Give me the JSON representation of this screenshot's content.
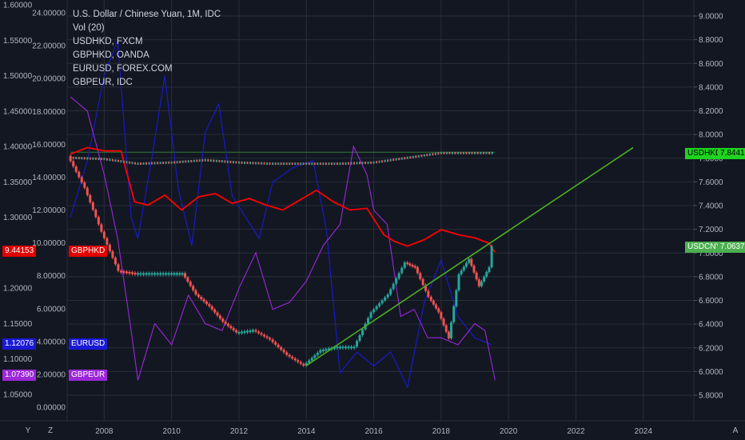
{
  "legend": {
    "main": "U.S. Dollar / Chinese Yuan, 1M, IDC",
    "vol": "Vol (20)",
    "s1": "USDHKD, FXCM",
    "s2": "GBPHKD, OANDA",
    "s3": "EURUSD, FOREX.COM",
    "s4": "GBPEUR, IDC"
  },
  "badges": {
    "usdhkd_name": "USDHKD",
    "usdhkd_val": "7.8441",
    "usdcny_name": "USDCNY",
    "usdcny_val": "7.0637",
    "gbphkd_val": "9.44153",
    "gbphkd_name": "GBPHKD",
    "eurusd_val": "1.12076",
    "eurusd_name": "EURUSD",
    "gbpeur_val": "1.07390",
    "gbpeur_name": "GBPEUR"
  },
  "corner": {
    "left": "Y",
    "z": "Z",
    "auto": "A"
  },
  "colors": {
    "background": "#131722",
    "grid": "#2a2e39",
    "axis_text": "#b2b5be",
    "usdcny_up": "#26a69a",
    "usdcny_down": "#ef5350",
    "usdhkd": "#ffffff",
    "gbphkd": "#ff0000",
    "eurusd": "#1a1ad6",
    "gbpeur": "#9c27d9",
    "trendline": "#4caf20",
    "hline": "#2e7d32"
  },
  "chart_data": {
    "type": "line",
    "x_ticks": [
      "2008",
      "2010",
      "2012",
      "2014",
      "2016",
      "2018",
      "2020",
      "2022",
      "2024"
    ],
    "x_range": [
      2006.9,
      2025.5
    ],
    "left_axis_outer": {
      "ticks": [
        "1.60000",
        "1.55000",
        "1.50000",
        "1.45000",
        "1.40000",
        "1.35000",
        "1.30000",
        "1.25000",
        "1.20000",
        "1.15000",
        "1.10000",
        "1.05000"
      ],
      "range": [
        1.05,
        1.6
      ]
    },
    "left_axis_inner": {
      "ticks": [
        "24.00000",
        "22.00000",
        "20.00000",
        "18.00000",
        "16.00000",
        "14.00000",
        "12.00000",
        "10.00000",
        "8.00000",
        "6.00000",
        "4.00000",
        "2.00000",
        "0.00000"
      ],
      "range": [
        0,
        24
      ]
    },
    "right_axis": {
      "ticks": [
        "9.0000",
        "8.8000",
        "8.6000",
        "8.4000",
        "8.2000",
        "8.0000",
        "7.8000",
        "7.6000",
        "7.4000",
        "7.2000",
        "7.0000",
        "6.8000",
        "6.6000",
        "6.4000",
        "6.2000",
        "6.0000",
        "5.8000"
      ],
      "range": [
        5.8,
        9.0
      ]
    },
    "series": [
      {
        "name": "USDCNY",
        "axis": "right",
        "x": [
          2007.0,
          2007.5,
          2008.0,
          2008.5,
          2009.0,
          2009.5,
          2010.0,
          2010.4,
          2010.8,
          2011.2,
          2011.6,
          2012.0,
          2012.5,
          2013.0,
          2013.5,
          2014.0,
          2014.5,
          2015.0,
          2015.5,
          2016.0,
          2016.5,
          2017.0,
          2017.3,
          2017.7,
          2018.0,
          2018.3,
          2018.6,
          2018.9,
          2019.2,
          2019.5,
          2019.6
        ],
        "y": [
          7.82,
          7.55,
          7.18,
          6.85,
          6.83,
          6.83,
          6.83,
          6.83,
          6.65,
          6.55,
          6.42,
          6.33,
          6.35,
          6.27,
          6.14,
          6.05,
          6.18,
          6.21,
          6.21,
          6.5,
          6.65,
          6.92,
          6.88,
          6.63,
          6.5,
          6.28,
          6.82,
          6.95,
          6.72,
          6.88,
          7.06
        ]
      },
      {
        "name": "USDHKD",
        "axis": "right",
        "x": [
          2007.0,
          2008.0,
          2009.0,
          2010.0,
          2011.0,
          2012.0,
          2013.0,
          2014.0,
          2015.0,
          2016.0,
          2017.0,
          2018.0,
          2019.0,
          2019.6
        ],
        "y": [
          7.8,
          7.79,
          7.75,
          7.76,
          7.78,
          7.76,
          7.75,
          7.75,
          7.75,
          7.76,
          7.8,
          7.84,
          7.84,
          7.84
        ]
      },
      {
        "name": "GBPHKD",
        "axis": "inner",
        "x": [
          2007.0,
          2007.5,
          2008.0,
          2008.5,
          2008.9,
          2009.3,
          2009.8,
          2010.3,
          2010.8,
          2011.3,
          2011.8,
          2012.3,
          2012.8,
          2013.3,
          2013.8,
          2014.3,
          2014.8,
          2015.3,
          2015.8,
          2016.3,
          2016.6,
          2017.0,
          2017.5,
          2018.0,
          2018.5,
          2019.0,
          2019.4,
          2019.6
        ],
        "y": [
          15.4,
          15.8,
          15.6,
          15.6,
          12.5,
          12.3,
          12.9,
          12.0,
          12.8,
          13.0,
          12.4,
          12.7,
          12.3,
          12.0,
          12.6,
          13.2,
          12.5,
          12.0,
          12.1,
          10.5,
          10.1,
          9.8,
          10.2,
          10.8,
          10.5,
          10.3,
          10.0,
          9.44
        ]
      },
      {
        "name": "EURUSD",
        "axis": "outer",
        "x": [
          2007.0,
          2007.5,
          2008.0,
          2008.4,
          2008.8,
          2009.0,
          2009.4,
          2009.8,
          2010.2,
          2010.6,
          2011.0,
          2011.4,
          2011.8,
          2012.2,
          2012.6,
          2013.0,
          2013.6,
          2014.2,
          2014.6,
          2015.0,
          2015.5,
          2016.0,
          2016.5,
          2017.0,
          2017.5,
          2018.0,
          2018.5,
          2019.0,
          2019.5
        ],
        "y": [
          1.3,
          1.38,
          1.5,
          1.55,
          1.3,
          1.27,
          1.38,
          1.5,
          1.34,
          1.26,
          1.42,
          1.46,
          1.33,
          1.3,
          1.27,
          1.35,
          1.37,
          1.38,
          1.28,
          1.08,
          1.11,
          1.09,
          1.11,
          1.06,
          1.18,
          1.24,
          1.16,
          1.13,
          1.12
        ]
      },
      {
        "name": "GBPEUR",
        "axis": "outer",
        "x": [
          2007.0,
          2007.5,
          2008.0,
          2008.4,
          2008.8,
          2009.0,
          2009.5,
          2010.0,
          2010.5,
          2011.0,
          2011.5,
          2012.0,
          2012.5,
          2013.0,
          2013.5,
          2014.0,
          2014.5,
          2015.0,
          2015.4,
          2015.8,
          2016.0,
          2016.4,
          2016.8,
          2017.2,
          2017.6,
          2018.0,
          2018.5,
          2019.0,
          2019.3,
          2019.6
        ],
        "y": [
          1.47,
          1.45,
          1.36,
          1.27,
          1.14,
          1.07,
          1.15,
          1.12,
          1.19,
          1.15,
          1.14,
          1.2,
          1.25,
          1.17,
          1.18,
          1.21,
          1.26,
          1.29,
          1.4,
          1.36,
          1.31,
          1.29,
          1.16,
          1.17,
          1.13,
          1.13,
          1.12,
          1.15,
          1.14,
          1.07
        ]
      },
      {
        "name": "Trendline",
        "axis": "right",
        "x": [
          2014.0,
          2023.7
        ],
        "y": [
          6.05,
          7.89
        ]
      },
      {
        "name": "Level",
        "axis": "right",
        "x": [
          2007.0,
          2019.6
        ],
        "y": [
          7.85,
          7.85
        ]
      }
    ]
  }
}
